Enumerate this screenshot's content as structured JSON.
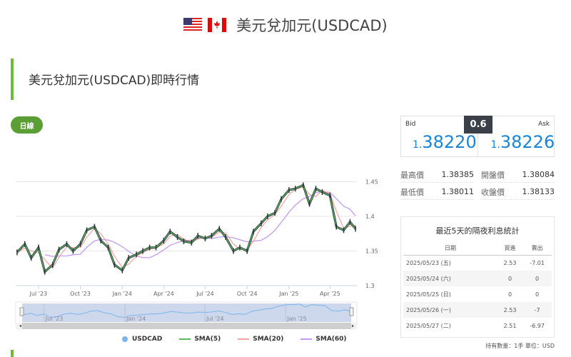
{
  "header": {
    "title": "美元兌加元(USDCAD)",
    "flags": [
      "us-flag",
      "canada-flag"
    ]
  },
  "section": {
    "title": "美元兌加元(USDCAD)即時行情",
    "period_button": "日線"
  },
  "quote": {
    "bid_label": "Bid",
    "bid_prefix": "1.",
    "bid_main": "38220",
    "ask_label": "Ask",
    "ask_prefix": "1.",
    "ask_main": "38226",
    "spread": "0.6",
    "accent": "#1a84d6"
  },
  "stats": [
    {
      "label": "最高價",
      "value": "1.38385"
    },
    {
      "label": "開盤價",
      "value": "1.38084"
    },
    {
      "label": "最低價",
      "value": "1.38011"
    },
    {
      "label": "收盤價",
      "value": "1.38133"
    }
  ],
  "swap": {
    "title": "最近5天的隔夜利息統計",
    "headers": [
      "日期",
      "買進",
      "賣出"
    ],
    "rows": [
      [
        "2025/05/23 (五)",
        "2.53",
        "-7.01"
      ],
      [
        "2025/05/24 (六)",
        "0",
        "0"
      ],
      [
        "2025/05/25 (日)",
        "0",
        "0"
      ],
      [
        "2025/05/26 (一)",
        "2.53",
        "-7"
      ],
      [
        "2025/05/27 (二)",
        "2.51",
        "-6.97"
      ]
    ],
    "note": "持有數量：1手 單位：USD"
  },
  "legend": [
    {
      "name": "USDCAD",
      "color": "#7cb5ec"
    },
    {
      "name": "SMA(5)",
      "color": "#5cb85c"
    },
    {
      "name": "SMA(20)",
      "color": "#f7a1a1"
    },
    {
      "name": "SMA(60)",
      "color": "#c39bf0"
    }
  ],
  "chart_data": {
    "type": "line",
    "ylim": [
      1.3,
      1.47
    ],
    "yticks": [
      "1.45",
      "1.4",
      "1.35",
      "1.3"
    ],
    "xticks": [
      "Jul '23",
      "Oct '23",
      "Jan '24",
      "Apr '24",
      "Jul '24",
      "Oct '24",
      "Jan '25",
      "Apr '25"
    ],
    "navigator_ticks": [
      "Jul '23",
      "Jan '24",
      "Jul '24",
      "Jan '25"
    ],
    "grid": true,
    "legend": "bottom",
    "series": [
      {
        "name": "USDCAD",
        "x": [
          "2023-05-15",
          "2023-06-01",
          "2023-06-15",
          "2023-07-01",
          "2023-07-15",
          "2023-08-01",
          "2023-08-15",
          "2023-09-01",
          "2023-09-15",
          "2023-10-01",
          "2023-10-15",
          "2023-11-01",
          "2023-11-15",
          "2023-12-01",
          "2023-12-15",
          "2024-01-01",
          "2024-01-15",
          "2024-02-01",
          "2024-02-15",
          "2024-03-01",
          "2024-03-15",
          "2024-04-01",
          "2024-04-15",
          "2024-05-01",
          "2024-05-15",
          "2024-06-01",
          "2024-06-15",
          "2024-07-01",
          "2024-07-15",
          "2024-08-01",
          "2024-08-15",
          "2024-09-01",
          "2024-09-15",
          "2024-10-01",
          "2024-10-15",
          "2024-11-01",
          "2024-11-15",
          "2024-12-01",
          "2024-12-15",
          "2025-01-01",
          "2025-01-15",
          "2025-02-01",
          "2025-02-15",
          "2025-03-01",
          "2025-03-15",
          "2025-04-01",
          "2025-04-15",
          "2025-05-01",
          "2025-05-15",
          "2025-05-27"
        ],
        "values": [
          1.348,
          1.36,
          1.34,
          1.355,
          1.32,
          1.33,
          1.352,
          1.36,
          1.35,
          1.36,
          1.38,
          1.385,
          1.365,
          1.355,
          1.33,
          1.322,
          1.34,
          1.345,
          1.35,
          1.355,
          1.355,
          1.365,
          1.378,
          1.37,
          1.364,
          1.362,
          1.372,
          1.368,
          1.372,
          1.382,
          1.37,
          1.35,
          1.355,
          1.35,
          1.378,
          1.39,
          1.4,
          1.405,
          1.425,
          1.438,
          1.44,
          1.445,
          1.418,
          1.44,
          1.435,
          1.43,
          1.385,
          1.38,
          1.392,
          1.382
        ]
      }
    ]
  }
}
